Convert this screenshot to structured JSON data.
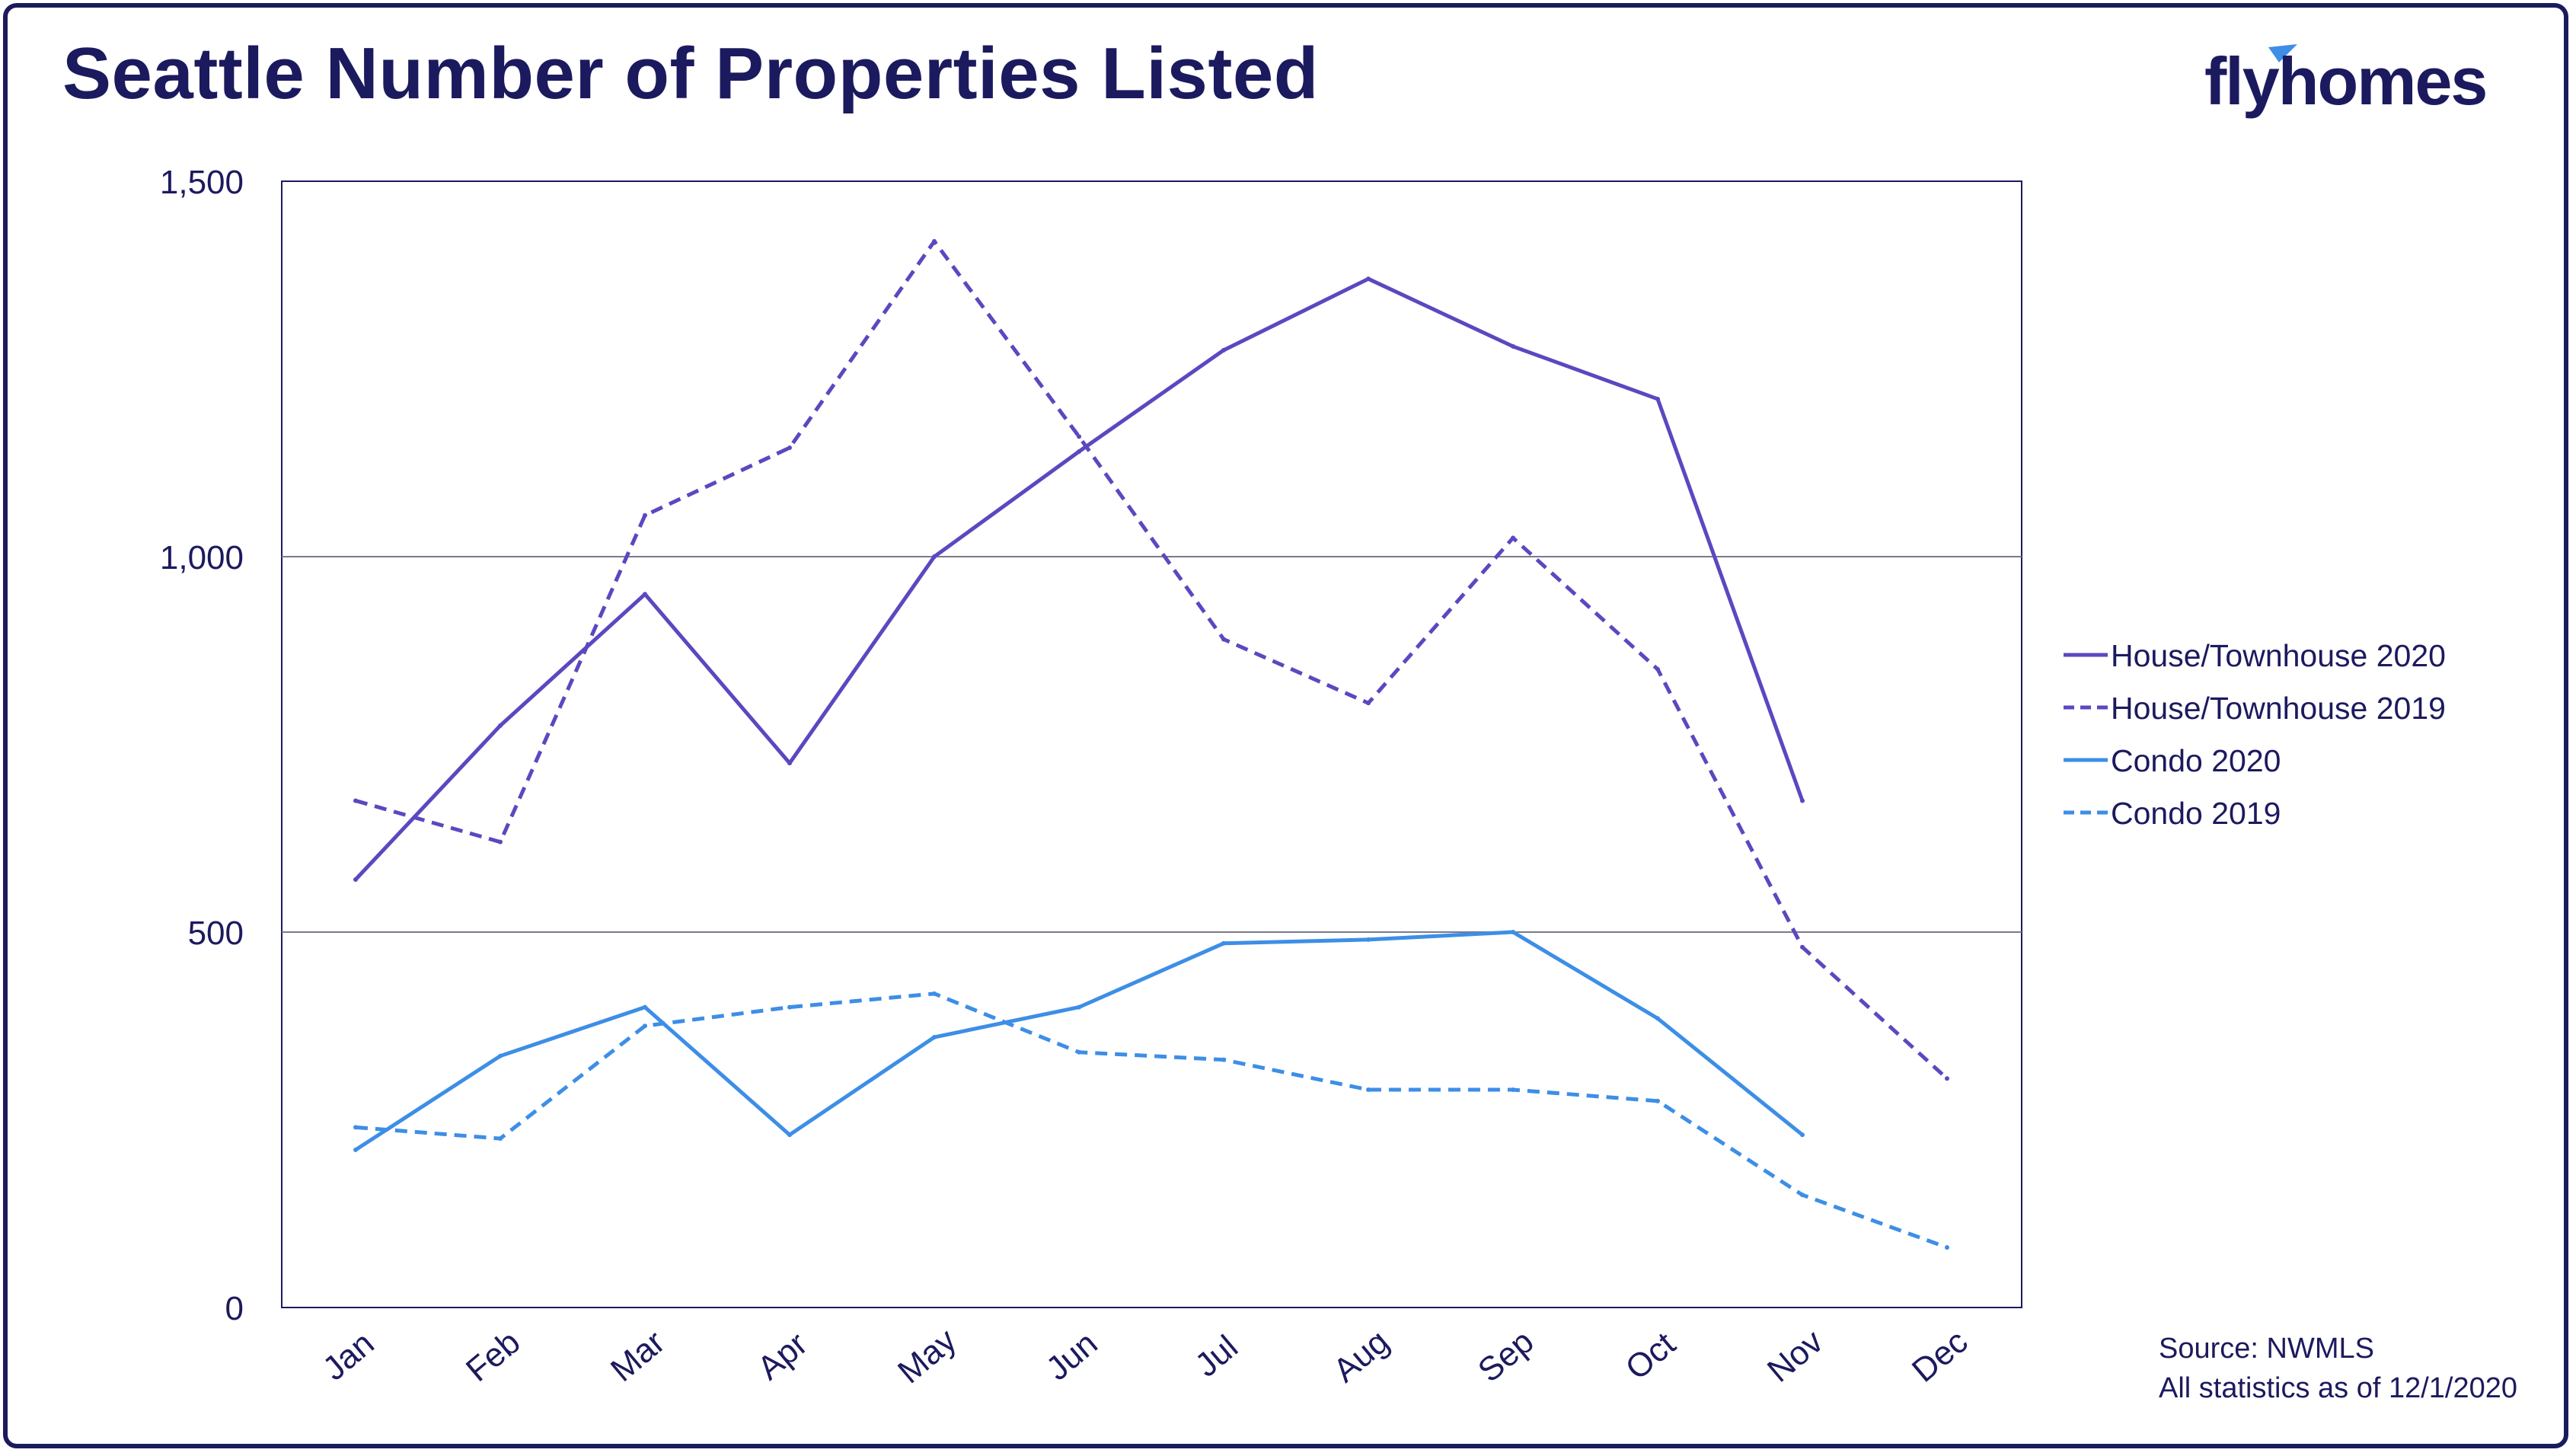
{
  "header": {
    "title": "Seattle Number of Properties Listed",
    "logo_text": "flyhomes"
  },
  "footer": {
    "source": "Source: NWMLS",
    "note": "All statistics as of 12/1/2020"
  },
  "colors": {
    "house": "#5b48c0",
    "condo": "#3d8ee6",
    "axis_text": "#1c1a5e",
    "grid": "#7a7a8c",
    "logo_accent": "#3d8ee6"
  },
  "chart_data": {
    "type": "line",
    "title": "Seattle Number of Properties Listed",
    "xlabel": "",
    "ylabel": "",
    "categories": [
      "Jan",
      "Feb",
      "Mar",
      "Apr",
      "May",
      "Jun",
      "Jul",
      "Aug",
      "Sep",
      "Oct",
      "Nov",
      "Dec"
    ],
    "ylim": [
      0,
      1500
    ],
    "yticks": [
      0,
      500,
      1000,
      1500
    ],
    "ytick_labels": [
      "0",
      "500",
      "1,000",
      "1,500"
    ],
    "grid": true,
    "legend_position": "right",
    "series": [
      {
        "name": "House/Townhouse 2020",
        "style": "solid",
        "color": "#5b48c0",
        "values": [
          570,
          775,
          950,
          725,
          1000,
          1140,
          1275,
          1370,
          1280,
          1210,
          675,
          null
        ]
      },
      {
        "name": "House/Townhouse 2019",
        "style": "dashed",
        "color": "#5b48c0",
        "values": [
          675,
          620,
          1055,
          1145,
          1420,
          1160,
          890,
          805,
          1025,
          850,
          480,
          305
        ]
      },
      {
        "name": "Condo 2020",
        "style": "solid",
        "color": "#3d8ee6",
        "values": [
          210,
          335,
          400,
          230,
          360,
          400,
          485,
          490,
          500,
          385,
          230,
          null
        ]
      },
      {
        "name": "Condo 2019",
        "style": "dashed",
        "color": "#3d8ee6",
        "values": [
          240,
          225,
          375,
          400,
          418,
          340,
          330,
          290,
          290,
          275,
          150,
          80
        ]
      }
    ]
  }
}
